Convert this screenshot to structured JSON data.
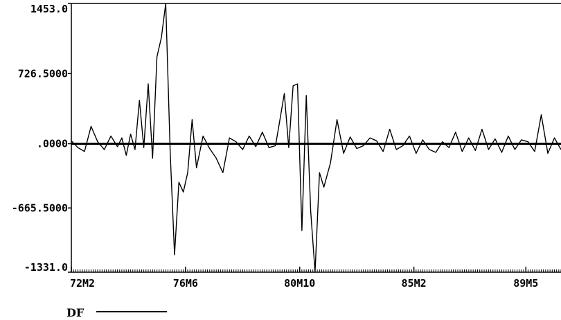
{
  "chart_data": {
    "type": "line",
    "title": "",
    "xlabel": "",
    "ylabel": "",
    "grid": false,
    "legend_position": "bottom-left",
    "ylim": [
      -1331.0,
      1453.0
    ],
    "yticks": [
      {
        "value": 1453.0,
        "label": "1453.0"
      },
      {
        "value": 726.5,
        "label": "726.5000"
      },
      {
        "value": 0,
        "label": ".0000"
      },
      {
        "value": -665.5,
        "label": "-665.5000"
      },
      {
        "value": -1331.0,
        "label": "-1331.0"
      }
    ],
    "xlim": [
      "1972-02",
      "1990-09"
    ],
    "xticks": [
      {
        "value": "1972-02",
        "label": "72M2"
      },
      {
        "value": "1976-06",
        "label": "76M6"
      },
      {
        "value": "1980-10",
        "label": "80M10"
      },
      {
        "value": "1985-02",
        "label": "85M2"
      },
      {
        "value": "1989-05",
        "label": "89M5"
      }
    ],
    "series": [
      {
        "name": "DF",
        "color": "#000000",
        "x": [
          "1972-02",
          "1972-05",
          "1972-08",
          "1972-11",
          "1973-02",
          "1973-05",
          "1973-08",
          "1973-11",
          "1974-01",
          "1974-03",
          "1974-05",
          "1974-07",
          "1974-09",
          "1974-11",
          "1975-01",
          "1975-03",
          "1975-05",
          "1975-07",
          "1975-09",
          "1975-11",
          "1976-01",
          "1976-03",
          "1976-05",
          "1976-07",
          "1976-09",
          "1976-11",
          "1977-02",
          "1977-05",
          "1977-08",
          "1977-11",
          "1978-02",
          "1978-05",
          "1978-08",
          "1978-11",
          "1979-02",
          "1979-05",
          "1979-08",
          "1979-11",
          "1980-01",
          "1980-03",
          "1980-05",
          "1980-07",
          "1980-09",
          "1980-11",
          "1981-01",
          "1981-03",
          "1981-05",
          "1981-07",
          "1981-09",
          "1981-12",
          "1982-03",
          "1982-06",
          "1982-09",
          "1982-12",
          "1983-03",
          "1983-06",
          "1983-09",
          "1983-12",
          "1984-03",
          "1984-06",
          "1984-09",
          "1984-12",
          "1985-03",
          "1985-06",
          "1985-09",
          "1985-12",
          "1986-03",
          "1986-06",
          "1986-09",
          "1986-12",
          "1987-03",
          "1987-06",
          "1987-09",
          "1987-12",
          "1988-03",
          "1988-06",
          "1988-09",
          "1988-12",
          "1989-03",
          "1989-06",
          "1989-09",
          "1989-12",
          "1990-03",
          "1990-06",
          "1990-09"
        ],
        "y": [
          30,
          -40,
          -80,
          180,
          20,
          -60,
          80,
          -30,
          60,
          -120,
          100,
          -60,
          450,
          -40,
          620,
          -150,
          900,
          1100,
          1453,
          -80,
          -1150,
          -400,
          -500,
          -300,
          250,
          -250,
          80,
          -50,
          -150,
          -300,
          60,
          20,
          -60,
          80,
          -30,
          120,
          -40,
          -20,
          250,
          520,
          -40,
          600,
          620,
          -900,
          500,
          -700,
          -1331,
          -300,
          -450,
          -200,
          250,
          -100,
          70,
          -50,
          -20,
          60,
          30,
          -80,
          150,
          -60,
          -20,
          80,
          -100,
          40,
          -60,
          -90,
          20,
          -40,
          120,
          -80,
          60,
          -70,
          150,
          -60,
          50,
          -90,
          80,
          -60,
          40,
          20,
          -80,
          300,
          -100,
          60,
          -60
        ]
      }
    ]
  },
  "legend": {
    "label": "DF"
  }
}
